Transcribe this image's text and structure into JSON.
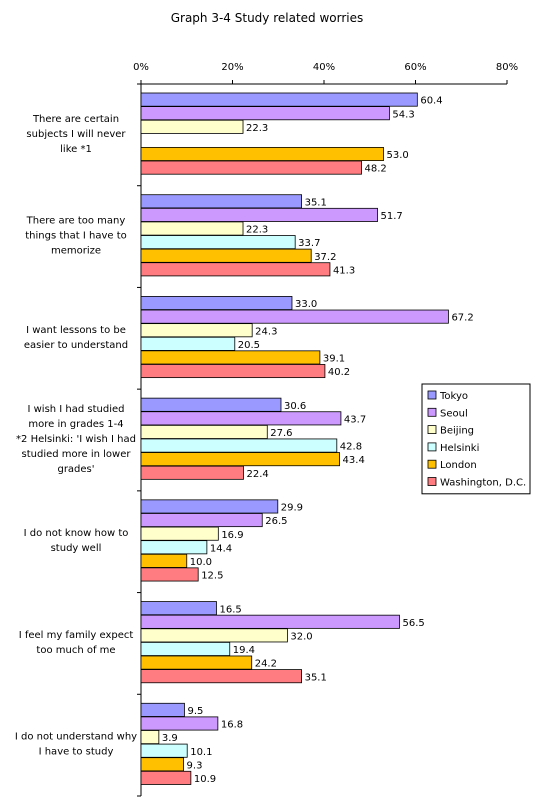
{
  "chart_data": {
    "type": "bar",
    "orientation": "horizontal",
    "title": "Graph 3-4   Study related worries",
    "xlim": [
      0,
      80
    ],
    "x_ticks": [
      "0%",
      "20%",
      "40%",
      "60%",
      "80%"
    ],
    "grid": false,
    "legend_position": "right",
    "categories": [
      [
        "There are certain",
        "subjects I will never",
        "like *1"
      ],
      [
        "There are too many",
        "things that I have to",
        "memorize"
      ],
      [
        "I want lessons to be",
        "easier to understand"
      ],
      [
        "I wish I had studied",
        "more in grades 1-4",
        "*2 Helsinki: 'I wish I had",
        "studied more in lower",
        "grades'"
      ],
      [
        "I do not know how to",
        "study well"
      ],
      [
        "I feel my family expect",
        "too much of me"
      ],
      [
        "I do not understand why",
        "I have to study"
      ]
    ],
    "series": [
      {
        "name": "Tokyo",
        "color": "#9999ff",
        "values": [
          60.4,
          35.1,
          33.0,
          30.6,
          29.9,
          16.5,
          9.5
        ]
      },
      {
        "name": "Seoul",
        "color": "#cc99ff",
        "values": [
          54.3,
          51.7,
          67.2,
          43.7,
          26.5,
          56.5,
          16.8
        ]
      },
      {
        "name": "Beijing",
        "color": "#ffffcc",
        "values": [
          22.3,
          22.3,
          24.3,
          27.6,
          16.9,
          32.0,
          3.9
        ]
      },
      {
        "name": "Helsinki",
        "color": "#ccffff",
        "values": [
          null,
          33.7,
          20.5,
          42.8,
          14.4,
          19.4,
          10.1
        ]
      },
      {
        "name": "London",
        "color": "#ffc000",
        "values": [
          53.0,
          37.2,
          39.1,
          43.4,
          10.0,
          24.2,
          9.3
        ]
      },
      {
        "name": "Washington, D.C.",
        "color": "#ff7c80",
        "values": [
          48.2,
          41.3,
          40.2,
          22.4,
          12.5,
          35.1,
          10.9
        ]
      }
    ]
  }
}
